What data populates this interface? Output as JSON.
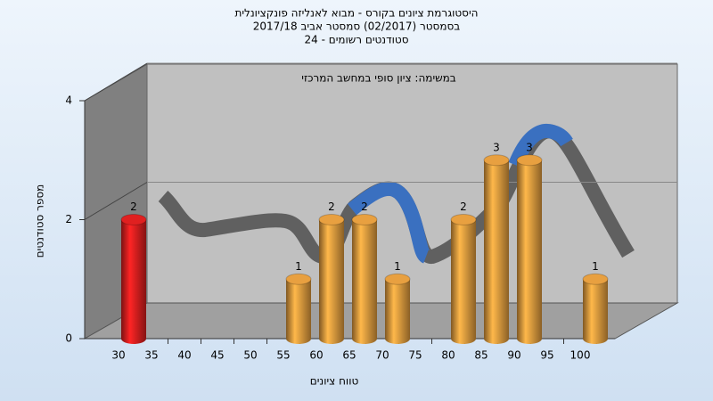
{
  "chart_data": {
    "type": "bar",
    "title": [
      "היסטוגרמת ציונים בקורס - מבוא לאנליזה פונקציונלית",
      "בסמסטר  (02/2017)  סמסטר אביב 2017/18",
      "סטודנטים רשומים - 24"
    ],
    "subtitle": "במשימה: ציון סופי במחשב המרכזי",
    "x_label": "טווח ציונים",
    "y_label": "מספר סטודנטים",
    "categories": [
      "30",
      "35",
      "40",
      "45",
      "50",
      "55",
      "60",
      "65",
      "70",
      "75",
      "80",
      "85",
      "90",
      "95",
      "100"
    ],
    "values": [
      2,
      0,
      0,
      0,
      0,
      1,
      2,
      2,
      1,
      0,
      2,
      3,
      3,
      0,
      1
    ],
    "colors": [
      "#e02020",
      "#e8a040",
      "#e8a040",
      "#e8a040",
      "#e8a040",
      "#e8a040",
      "#e8a040",
      "#e8a040",
      "#e8a040",
      "#e8a040",
      "#e8a040",
      "#e8a040",
      "#e8a040",
      "#e8a040",
      "#e8a040"
    ],
    "ylim": [
      0,
      4
    ],
    "yticks": [
      0,
      2,
      4
    ],
    "grid": true
  }
}
